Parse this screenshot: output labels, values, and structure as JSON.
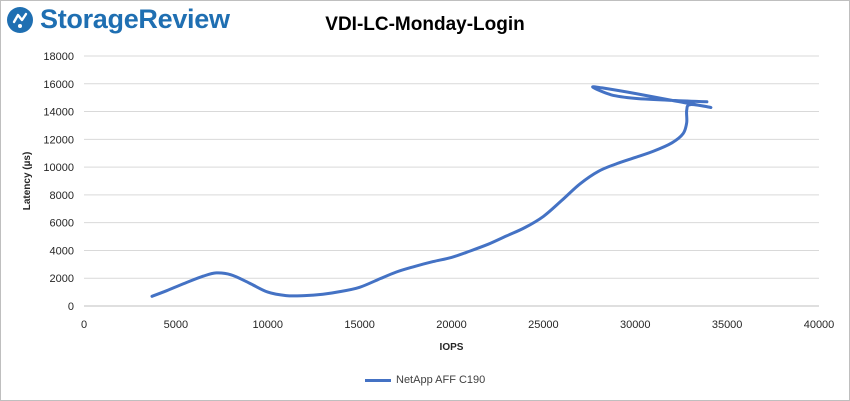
{
  "brand": {
    "name": "StorageReview",
    "color": "#1f6fb2"
  },
  "chart_data": {
    "type": "line",
    "title": "VDI-LC-Monday-Login",
    "xlabel": "IOPS",
    "ylabel": "Latency (µs)",
    "xlim": [
      0,
      40000
    ],
    "ylim": [
      0,
      18000
    ],
    "xticks": [
      0,
      5000,
      10000,
      15000,
      20000,
      25000,
      30000,
      35000,
      40000
    ],
    "yticks": [
      0,
      2000,
      4000,
      6000,
      8000,
      10000,
      12000,
      14000,
      16000,
      18000
    ],
    "grid": true,
    "legend_position": "bottom",
    "series": [
      {
        "name": "NetApp AFF C190",
        "color": "#4472c4",
        "points": [
          [
            3700,
            700
          ],
          [
            4500,
            1100
          ],
          [
            5500,
            1650
          ],
          [
            6500,
            2150
          ],
          [
            7200,
            2380
          ],
          [
            8000,
            2250
          ],
          [
            9000,
            1650
          ],
          [
            10000,
            1000
          ],
          [
            11000,
            750
          ],
          [
            12000,
            750
          ],
          [
            13000,
            850
          ],
          [
            14000,
            1050
          ],
          [
            15000,
            1350
          ],
          [
            16000,
            1900
          ],
          [
            17000,
            2450
          ],
          [
            18000,
            2850
          ],
          [
            19000,
            3200
          ],
          [
            20000,
            3500
          ],
          [
            21000,
            3950
          ],
          [
            22000,
            4450
          ],
          [
            23000,
            5050
          ],
          [
            24000,
            5650
          ],
          [
            25000,
            6450
          ],
          [
            26000,
            7600
          ],
          [
            27000,
            8800
          ],
          [
            28000,
            9700
          ],
          [
            29000,
            10250
          ],
          [
            30000,
            10700
          ],
          [
            31000,
            11150
          ],
          [
            32000,
            11750
          ],
          [
            32600,
            12400
          ],
          [
            32800,
            13200
          ],
          [
            32800,
            14100
          ],
          [
            33000,
            14500
          ],
          [
            34100,
            14300
          ],
          [
            32000,
            14800
          ],
          [
            30000,
            15300
          ],
          [
            28200,
            15700
          ],
          [
            27700,
            15750
          ],
          [
            28700,
            15200
          ],
          [
            30000,
            14950
          ],
          [
            32000,
            14800
          ],
          [
            33900,
            14700
          ]
        ]
      }
    ]
  }
}
